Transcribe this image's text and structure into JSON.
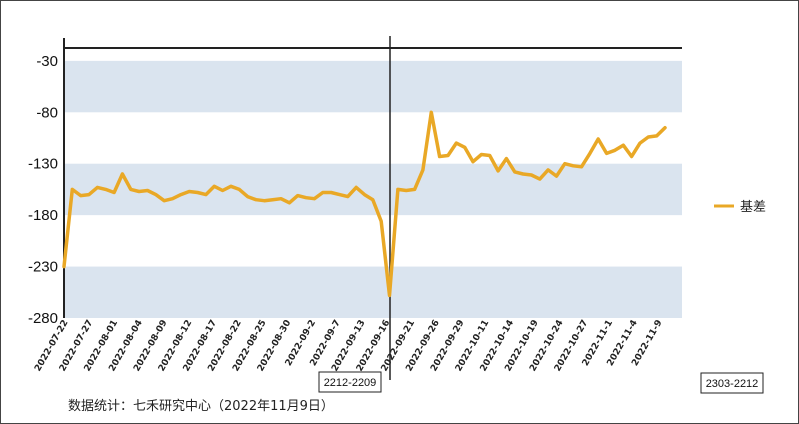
{
  "chart_data": {
    "type": "line",
    "title": "",
    "xlabel": "",
    "ylabel": "",
    "ylim": [
      -280,
      0
    ],
    "yticks": [
      -30,
      -80,
      -130,
      -180,
      -230,
      -280
    ],
    "grid_bands": true,
    "legend_placement": "right",
    "series": [
      {
        "name": "基差",
        "color": "#e9a826",
        "values": [
          -230,
          -155,
          -161,
          -160,
          -153,
          -155,
          -158,
          -140,
          -155,
          -157,
          -156,
          -160,
          -166,
          -164,
          -160,
          -157,
          -158,
          -160,
          -152,
          -156,
          -152,
          -155,
          -162,
          -165,
          -166,
          -165,
          -164,
          -168,
          -161,
          -163,
          -164,
          -158,
          -158,
          -160,
          -162,
          -153,
          -160,
          -165,
          -186,
          -258,
          -155,
          -156,
          -155,
          -136,
          -80,
          -123,
          -122,
          -110,
          -114,
          -128,
          -121,
          -122,
          -137,
          -125,
          -138,
          -140,
          -141,
          -145,
          -136,
          -142,
          -130,
          -132,
          -133,
          -120,
          -106,
          -120,
          -117,
          -112,
          -123,
          -110,
          -104,
          -103,
          -95
        ]
      }
    ],
    "x_tick_labels": [
      "2022-07-22",
      "2022-07-27",
      "2022-08-01",
      "2022-08-04",
      "2022-08-09",
      "2022-08-12",
      "2022-08-17",
      "2022-08-22",
      "2022-08-25",
      "2022-08-30",
      "2022-09-2",
      "2022-09-7",
      "2022-09-13",
      "2022-09-16",
      "2022-09-21",
      "2022-09-26",
      "2022-09-29",
      "2022-10-11",
      "2022-10-14",
      "2022-10-19",
      "2022-10-24",
      "2022-10-27",
      "2022-11-1",
      "2022-11-4",
      "2022-11-9"
    ],
    "annotations": [
      "2212-2209",
      "2303-2212"
    ],
    "source": "数据统计：七禾研究中心（2022年11月9日）"
  }
}
